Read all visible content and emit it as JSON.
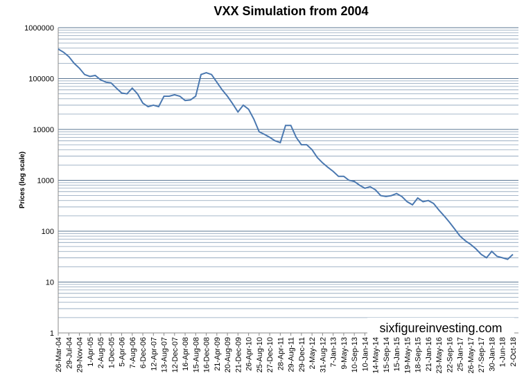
{
  "chart_data": {
    "type": "line",
    "title": "VXX Simulation from 2004",
    "y_label": "Prices (log scale)",
    "annotation": "sixfigureinvesting.com",
    "categories": [
      "26-Mar-04",
      null,
      "29-Jul-04",
      null,
      "29-Nov-04",
      null,
      "1-Apr-05",
      null,
      "2-Aug-05",
      null,
      "1-Dec-05",
      null,
      "5-Apr-06",
      null,
      "7-Aug-06",
      null,
      "6-Dec-06",
      null,
      "12-Apr-07",
      null,
      "13-Aug-07",
      null,
      "12-Dec-07",
      null,
      "16-Apr-08",
      null,
      "15-Aug-08",
      null,
      "16-Dec-08",
      null,
      "21-Apr-09",
      null,
      "20-Aug-09",
      null,
      "21-Dec-09",
      null,
      "26-Apr-10",
      null,
      "25-Aug-10",
      null,
      "27-Dec-10",
      null,
      "28-Apr-11",
      null,
      "29-Aug-11",
      null,
      "29-Dec-11",
      null,
      "2-May-12",
      null,
      "31-Aug-12",
      null,
      "7-Jan-13",
      null,
      "9-May-13",
      null,
      "10-Sep-13",
      null,
      "10-Jan-14",
      null,
      "14-May-14",
      null,
      "15-Sep-14",
      null,
      "15-Jan-15",
      null,
      "19-May-15",
      null,
      "18-Sep-15",
      null,
      "21-Jan-16",
      null,
      "23-May-16",
      null,
      "22-Sep-16",
      null,
      "25-Jan-17",
      null,
      "26-May-17",
      null,
      "27-Sep-17",
      null,
      "30-Jan-18",
      null,
      "1-Jun-18",
      null,
      "2-Oct-18"
    ],
    "values": [
      380000,
      330000,
      270000,
      200000,
      160000,
      120000,
      110000,
      115000,
      95000,
      85000,
      82000,
      65000,
      52000,
      50000,
      65000,
      50000,
      33000,
      28000,
      30000,
      28000,
      45000,
      45000,
      48000,
      45000,
      37000,
      38000,
      45000,
      120000,
      130000,
      120000,
      85000,
      60000,
      45000,
      32000,
      22000,
      30000,
      25000,
      16000,
      9000,
      8000,
      7000,
      6000,
      5500,
      12000,
      12000,
      7000,
      5000,
      5000,
      4000,
      2800,
      2200,
      1800,
      1500,
      1200,
      1200,
      1000,
      950,
      800,
      700,
      750,
      650,
      500,
      480,
      500,
      550,
      480,
      380,
      330,
      450,
      380,
      400,
      350,
      260,
      200,
      150,
      110,
      80,
      65,
      55,
      45,
      35,
      30,
      40,
      32,
      30,
      28,
      35
    ],
    "color": "#4a78b0",
    "log_scale": true,
    "grid": true,
    "minor_grid": true,
    "ylim": [
      1,
      1000000
    ],
    "yticks": [
      1,
      10,
      100,
      1000,
      10000,
      100000,
      1000000
    ]
  }
}
